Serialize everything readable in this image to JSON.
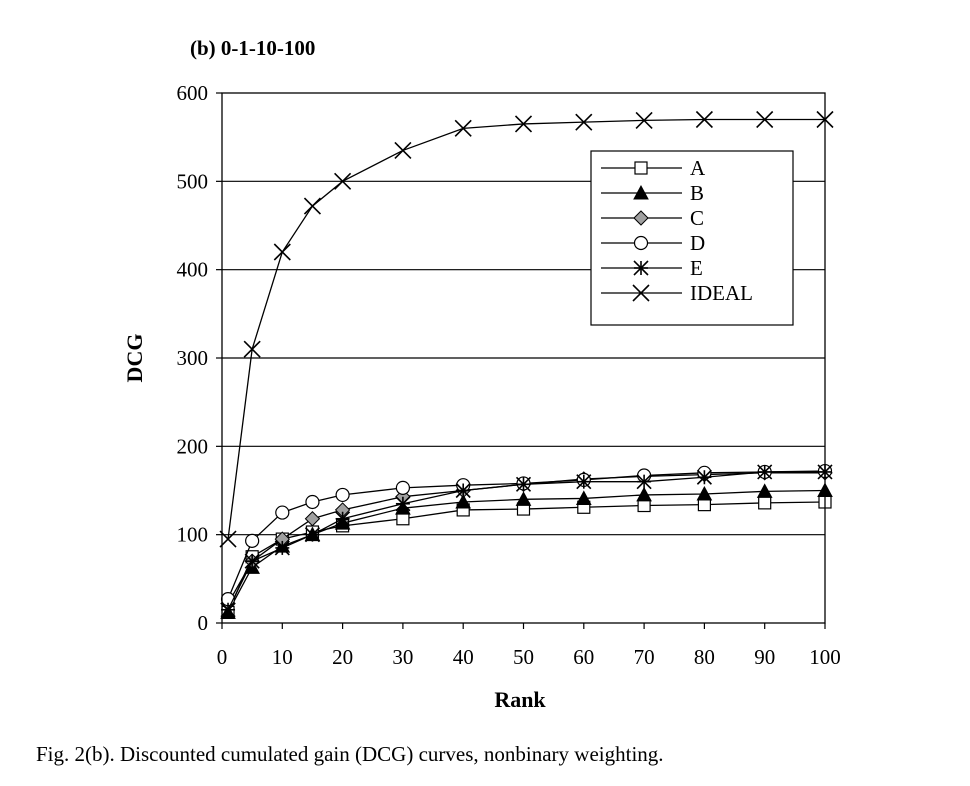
{
  "caption": "Fig. 2(b).   Discounted cumulated gain (DCG) curves, nonbinary weighting.",
  "chart_data": {
    "type": "line",
    "title": "(b) 0-1-10-100",
    "xlabel": "Rank",
    "ylabel": "DCG",
    "xlim": [
      0,
      100
    ],
    "ylim": [
      0,
      600
    ],
    "xticks": [
      0,
      10,
      20,
      30,
      40,
      50,
      60,
      70,
      80,
      90,
      100
    ],
    "yticks": [
      0,
      100,
      200,
      300,
      400,
      500,
      600
    ],
    "grid": "horizontal",
    "legend": "top-right",
    "x": [
      1,
      5,
      10,
      15,
      20,
      30,
      40,
      50,
      60,
      70,
      80,
      90,
      100
    ],
    "series": [
      {
        "name": "A",
        "marker": "square-open",
        "values": [
          12,
          75,
          95,
          103,
          110,
          118,
          128,
          129,
          131,
          133,
          134,
          136,
          137
        ]
      },
      {
        "name": "B",
        "marker": "triangle-filled",
        "values": [
          12,
          63,
          87,
          100,
          113,
          130,
          137,
          140,
          141,
          145,
          146,
          149,
          150
        ]
      },
      {
        "name": "C",
        "marker": "diamond-grey",
        "values": [
          22,
          70,
          95,
          118,
          128,
          143,
          150,
          157,
          163,
          166,
          168,
          170,
          170
        ]
      },
      {
        "name": "D",
        "marker": "circle-open",
        "values": [
          27,
          93,
          125,
          137,
          145,
          153,
          156,
          158,
          162,
          167,
          170,
          171,
          172
        ]
      },
      {
        "name": "E",
        "marker": "asterisk",
        "values": [
          15,
          70,
          85,
          100,
          118,
          135,
          150,
          157,
          160,
          160,
          165,
          171,
          171
        ]
      },
      {
        "name": "IDEAL",
        "marker": "x-cross",
        "values": [
          95,
          310,
          420,
          472,
          500,
          535,
          560,
          565,
          567,
          569,
          570,
          570,
          570
        ]
      }
    ]
  }
}
